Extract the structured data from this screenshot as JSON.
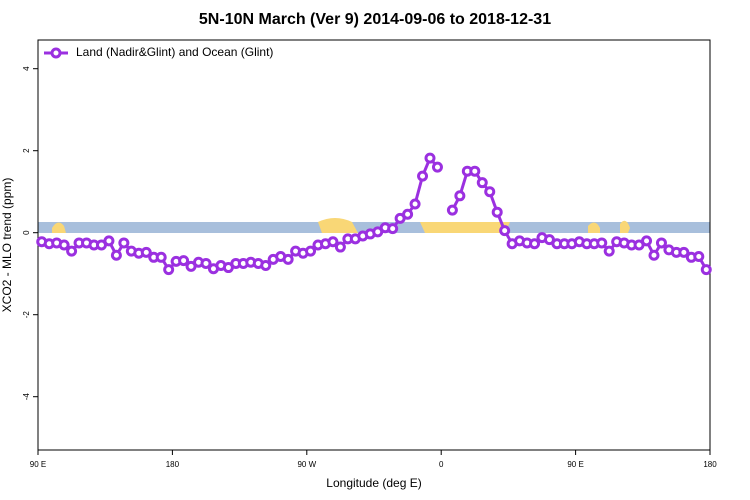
{
  "chart_data": {
    "type": "line",
    "title": "5N-10N March (Ver 9)   2014-09-06 to 2018-12-31",
    "x_label": "Longitude (deg E)",
    "y_label": "XCO2 - MLO trend (ppm)",
    "xlim": [
      90,
      540
    ],
    "ylim": [
      -5.3,
      4.7
    ],
    "xticks": [
      {
        "value": 90,
        "label": "90 E"
      },
      {
        "value": 180,
        "label": "180"
      },
      {
        "value": 270,
        "label": "90 W"
      },
      {
        "value": 360,
        "label": "0"
      },
      {
        "value": 450,
        "label": "90 E"
      },
      {
        "value": 540,
        "label": "180"
      }
    ],
    "yticks": [
      -4,
      -2,
      0,
      2,
      4
    ],
    "legend": "top-left",
    "x": [
      92.5,
      97.5,
      102.5,
      107.5,
      112.5,
      117.5,
      122.5,
      127.5,
      132.5,
      137.5,
      142.5,
      147.5,
      152.5,
      157.5,
      162.5,
      167.5,
      172.5,
      177.5,
      182.5,
      187.5,
      192.5,
      197.5,
      202.5,
      207.5,
      212.5,
      217.5,
      222.5,
      227.5,
      232.5,
      237.5,
      242.5,
      247.5,
      252.5,
      257.5,
      262.5,
      267.5,
      272.5,
      277.5,
      282.5,
      287.5,
      292.5,
      297.5,
      302.5,
      307.5,
      312.5,
      317.5,
      322.5,
      327.5,
      332.5,
      337.5,
      342.5,
      347.5,
      352.5,
      357.5,
      362.5,
      367.5,
      372.5,
      377.5,
      382.5,
      387.5,
      392.5,
      397.5,
      402.5,
      407.5,
      412.5,
      417.5,
      422.5,
      427.5,
      432.5,
      437.5,
      442.5,
      447.5,
      452.5,
      457.5,
      462.5,
      467.5,
      472.5,
      477.5,
      482.5,
      487.5,
      492.5,
      497.5,
      502.5,
      507.5,
      512.5,
      517.5,
      522.5,
      527.5,
      532.5,
      537.5
    ],
    "series": [
      {
        "name": "Land (Nadir&Glint) and Ocean (Glint)",
        "color": "#9b30e0",
        "values": [
          -0.22,
          -0.27,
          -0.25,
          -0.3,
          -0.45,
          -0.25,
          -0.25,
          -0.3,
          -0.3,
          -0.2,
          -0.55,
          -0.25,
          -0.45,
          -0.5,
          -0.48,
          -0.6,
          -0.6,
          -0.9,
          -0.7,
          -0.68,
          -0.82,
          -0.72,
          -0.75,
          -0.88,
          -0.8,
          -0.85,
          -0.75,
          -0.75,
          -0.72,
          -0.75,
          -0.8,
          -0.65,
          -0.58,
          -0.65,
          -0.45,
          -0.5,
          -0.45,
          -0.3,
          -0.27,
          -0.22,
          -0.35,
          -0.15,
          -0.15,
          -0.08,
          -0.03,
          0.02,
          0.12,
          0.1,
          0.35,
          0.45,
          0.7,
          1.38,
          1.82,
          1.6,
          null,
          0.55,
          0.9,
          1.5,
          1.5,
          1.22,
          1.0,
          0.5,
          0.05,
          -0.27,
          -0.2,
          -0.25,
          -0.27,
          -0.12,
          -0.17,
          -0.27,
          -0.27,
          -0.27,
          -0.22,
          -0.27,
          -0.27,
          -0.25,
          -0.45,
          -0.22,
          -0.25,
          -0.3,
          -0.3,
          -0.2,
          -0.55,
          -0.25,
          -0.42,
          -0.48,
          -0.48,
          -0.6,
          -0.58,
          -0.9
        ]
      }
    ]
  }
}
